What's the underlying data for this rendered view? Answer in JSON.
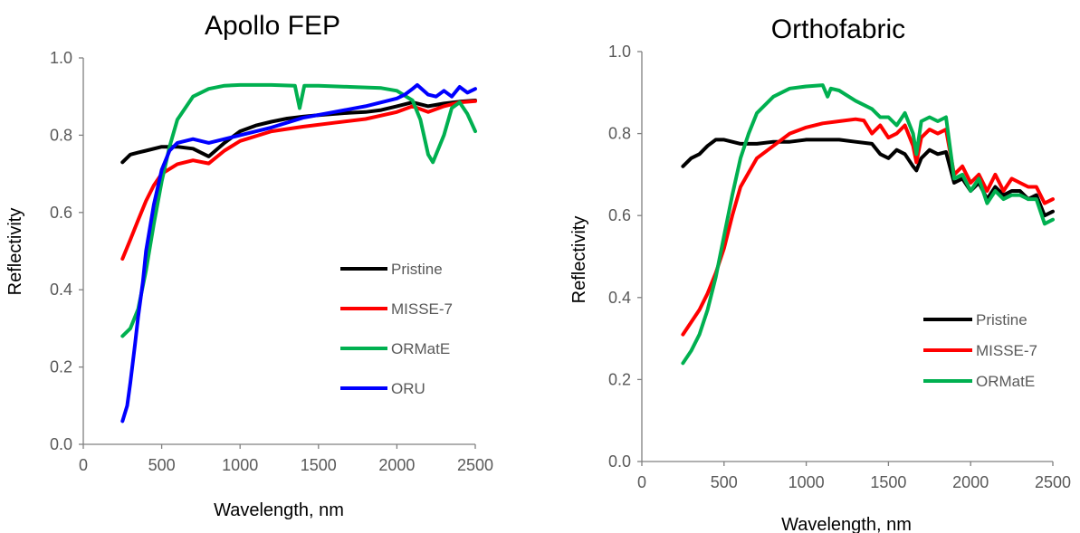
{
  "chart_data": [
    {
      "type": "line",
      "title": "Apollo FEP",
      "xlabel": "Wavelength, nm",
      "ylabel": "Reflectivity",
      "xlim": [
        0,
        2500
      ],
      "ylim": [
        0,
        1.0
      ],
      "xticks": [
        "0",
        "500",
        "1000",
        "1500",
        "2000",
        "2500"
      ],
      "yticks": [
        "0.0",
        "0.2",
        "0.4",
        "0.6",
        "0.8",
        "1.0"
      ],
      "grid": false,
      "legend_position": "right",
      "series": [
        {
          "name": "Pristine",
          "color": "#000000",
          "x": [
            250,
            300,
            350,
            400,
            500,
            600,
            700,
            800,
            900,
            1000,
            1100,
            1200,
            1300,
            1400,
            1500,
            1600,
            1700,
            1800,
            1900,
            2000,
            2100,
            2200,
            2300,
            2400,
            2500
          ],
          "y": [
            0.73,
            0.75,
            0.755,
            0.76,
            0.77,
            0.77,
            0.765,
            0.745,
            0.78,
            0.81,
            0.825,
            0.835,
            0.843,
            0.848,
            0.852,
            0.855,
            0.858,
            0.86,
            0.865,
            0.875,
            0.885,
            0.875,
            0.882,
            0.887,
            0.89
          ]
        },
        {
          "name": "MISSE-7",
          "color": "#ff0000",
          "x": [
            250,
            300,
            350,
            400,
            450,
            500,
            600,
            700,
            800,
            900,
            1000,
            1200,
            1400,
            1600,
            1800,
            2000,
            2100,
            2200,
            2300,
            2400,
            2500
          ],
          "y": [
            0.48,
            0.53,
            0.58,
            0.63,
            0.67,
            0.7,
            0.725,
            0.735,
            0.727,
            0.76,
            0.785,
            0.81,
            0.822,
            0.832,
            0.842,
            0.86,
            0.875,
            0.86,
            0.875,
            0.885,
            0.888
          ]
        },
        {
          "name": "ORMatE",
          "color": "#00b050",
          "x": [
            250,
            300,
            350,
            400,
            450,
            500,
            550,
            600,
            700,
            800,
            900,
            1000,
            1200,
            1350,
            1380,
            1410,
            1500,
            1700,
            1900,
            2000,
            2100,
            2150,
            2200,
            2230,
            2300,
            2350,
            2400,
            2450,
            2500
          ],
          "y": [
            0.28,
            0.3,
            0.35,
            0.45,
            0.57,
            0.68,
            0.77,
            0.84,
            0.9,
            0.92,
            0.928,
            0.93,
            0.93,
            0.928,
            0.87,
            0.928,
            0.928,
            0.925,
            0.922,
            0.915,
            0.89,
            0.84,
            0.75,
            0.73,
            0.8,
            0.87,
            0.885,
            0.855,
            0.81
          ]
        },
        {
          "name": "ORU",
          "color": "#0000ff",
          "x": [
            250,
            280,
            300,
            330,
            350,
            380,
            400,
            450,
            500,
            550,
            600,
            700,
            800,
            900,
            1000,
            1200,
            1400,
            1600,
            1800,
            2000,
            2050,
            2100,
            2130,
            2200,
            2250,
            2300,
            2350,
            2400,
            2450,
            2500
          ],
          "y": [
            0.06,
            0.1,
            0.16,
            0.26,
            0.33,
            0.42,
            0.5,
            0.62,
            0.71,
            0.76,
            0.78,
            0.79,
            0.78,
            0.79,
            0.8,
            0.82,
            0.845,
            0.86,
            0.875,
            0.895,
            0.905,
            0.92,
            0.93,
            0.905,
            0.9,
            0.915,
            0.9,
            0.925,
            0.91,
            0.92
          ]
        }
      ]
    },
    {
      "type": "line",
      "title": "Orthofabric",
      "xlabel": "Wavelength, nm",
      "ylabel": "Reflectivity",
      "xlim": [
        0,
        2500
      ],
      "ylim": [
        0,
        1.0
      ],
      "xticks": [
        "0",
        "500",
        "1000",
        "1500",
        "2000",
        "2500"
      ],
      "yticks": [
        "0.0",
        "0.2",
        "0.4",
        "0.6",
        "0.8",
        "1.0"
      ],
      "grid": false,
      "legend_position": "right",
      "series": [
        {
          "name": "Pristine",
          "color": "#000000",
          "x": [
            250,
            300,
            350,
            400,
            450,
            500,
            600,
            700,
            800,
            900,
            1000,
            1100,
            1200,
            1300,
            1400,
            1450,
            1500,
            1550,
            1600,
            1650,
            1670,
            1700,
            1750,
            1800,
            1850,
            1900,
            1950,
            2000,
            2050,
            2100,
            2150,
            2200,
            2250,
            2300,
            2350,
            2400,
            2450,
            2500
          ],
          "y": [
            0.72,
            0.74,
            0.75,
            0.77,
            0.785,
            0.785,
            0.775,
            0.775,
            0.78,
            0.78,
            0.785,
            0.785,
            0.785,
            0.78,
            0.775,
            0.75,
            0.74,
            0.76,
            0.75,
            0.72,
            0.71,
            0.74,
            0.76,
            0.75,
            0.755,
            0.68,
            0.69,
            0.66,
            0.68,
            0.64,
            0.67,
            0.65,
            0.66,
            0.66,
            0.64,
            0.65,
            0.6,
            0.61
          ]
        },
        {
          "name": "MISSE-7",
          "color": "#ff0000",
          "x": [
            250,
            300,
            350,
            400,
            450,
            500,
            550,
            600,
            700,
            800,
            900,
            1000,
            1100,
            1200,
            1300,
            1350,
            1400,
            1450,
            1500,
            1550,
            1600,
            1650,
            1670,
            1700,
            1750,
            1800,
            1850,
            1900,
            1950,
            2000,
            2050,
            2100,
            2150,
            2200,
            2250,
            2300,
            2350,
            2400,
            2450,
            2500
          ],
          "y": [
            0.31,
            0.34,
            0.37,
            0.41,
            0.46,
            0.52,
            0.6,
            0.67,
            0.74,
            0.77,
            0.8,
            0.815,
            0.825,
            0.83,
            0.835,
            0.832,
            0.8,
            0.82,
            0.79,
            0.8,
            0.82,
            0.77,
            0.73,
            0.79,
            0.81,
            0.8,
            0.81,
            0.7,
            0.72,
            0.68,
            0.7,
            0.66,
            0.7,
            0.66,
            0.69,
            0.68,
            0.67,
            0.67,
            0.63,
            0.64
          ]
        },
        {
          "name": "ORMatE",
          "color": "#00b050",
          "x": [
            250,
            300,
            350,
            400,
            450,
            500,
            550,
            600,
            650,
            700,
            800,
            900,
            1000,
            1100,
            1130,
            1150,
            1200,
            1300,
            1350,
            1400,
            1450,
            1500,
            1550,
            1600,
            1650,
            1670,
            1700,
            1750,
            1800,
            1850,
            1900,
            1950,
            2000,
            2050,
            2100,
            2150,
            2200,
            2250,
            2300,
            2350,
            2400,
            2450,
            2500
          ],
          "y": [
            0.24,
            0.27,
            0.31,
            0.37,
            0.45,
            0.55,
            0.65,
            0.74,
            0.8,
            0.85,
            0.89,
            0.91,
            0.915,
            0.918,
            0.89,
            0.91,
            0.905,
            0.88,
            0.87,
            0.86,
            0.84,
            0.84,
            0.82,
            0.85,
            0.8,
            0.75,
            0.83,
            0.84,
            0.83,
            0.84,
            0.69,
            0.7,
            0.66,
            0.69,
            0.63,
            0.66,
            0.64,
            0.65,
            0.65,
            0.64,
            0.64,
            0.58,
            0.59
          ]
        }
      ]
    }
  ]
}
